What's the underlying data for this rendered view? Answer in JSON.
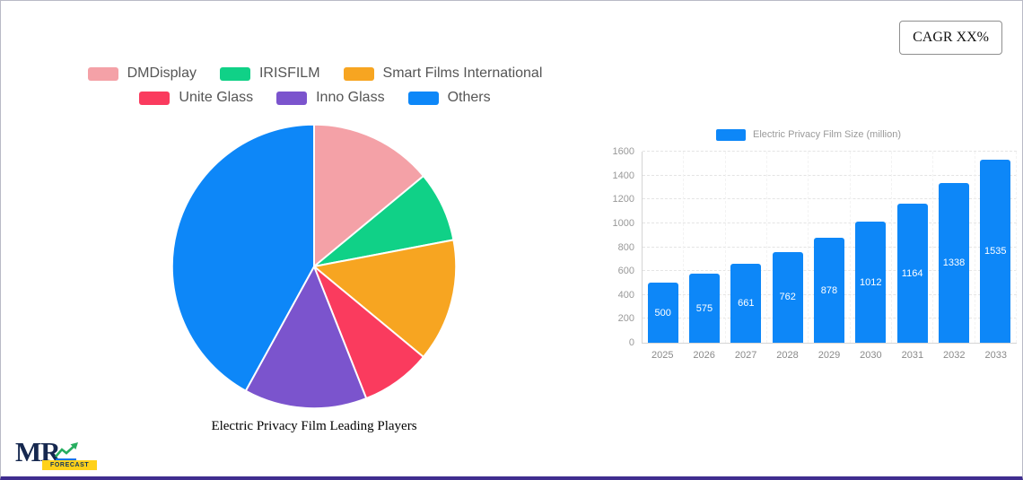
{
  "ui": {
    "cagr_label": "CAGR XX%",
    "logo": {
      "text": "MR",
      "badge": "FORECAST"
    }
  },
  "chart_data": [
    {
      "type": "pie",
      "title": "Electric Privacy Film Leading Players",
      "legend_position": "top",
      "unit": "%",
      "labels": [
        "DMDisplay",
        "IRISFILM",
        "Smart Films International",
        "Unite Glass",
        "Inno Glass",
        "Others"
      ],
      "values": [
        14,
        8,
        14,
        8,
        14,
        42
      ],
      "colors": [
        "#f4a1a7",
        "#10d187",
        "#f7a521",
        "#fa3b5e",
        "#7b54cd",
        "#0d87f8"
      ],
      "legend_rows": [
        [
          0,
          1,
          2
        ],
        [
          3,
          4,
          5
        ]
      ]
    },
    {
      "type": "bar",
      "title": "",
      "legend": [
        "Electric Privacy Film Size (million)"
      ],
      "categories": [
        "2025",
        "2026",
        "2027",
        "2028",
        "2029",
        "2030",
        "2031",
        "2032",
        "2033"
      ],
      "values": [
        500,
        575,
        661,
        762,
        878,
        1012,
        1164,
        1338,
        1535
      ],
      "bar_color": "#0d87f8",
      "ylim": [
        0,
        1600
      ],
      "yticks": [
        0,
        200,
        400,
        600,
        800,
        1000,
        1200,
        1400,
        1600
      ],
      "grid": true,
      "value_labels": "inside-center-white"
    }
  ]
}
